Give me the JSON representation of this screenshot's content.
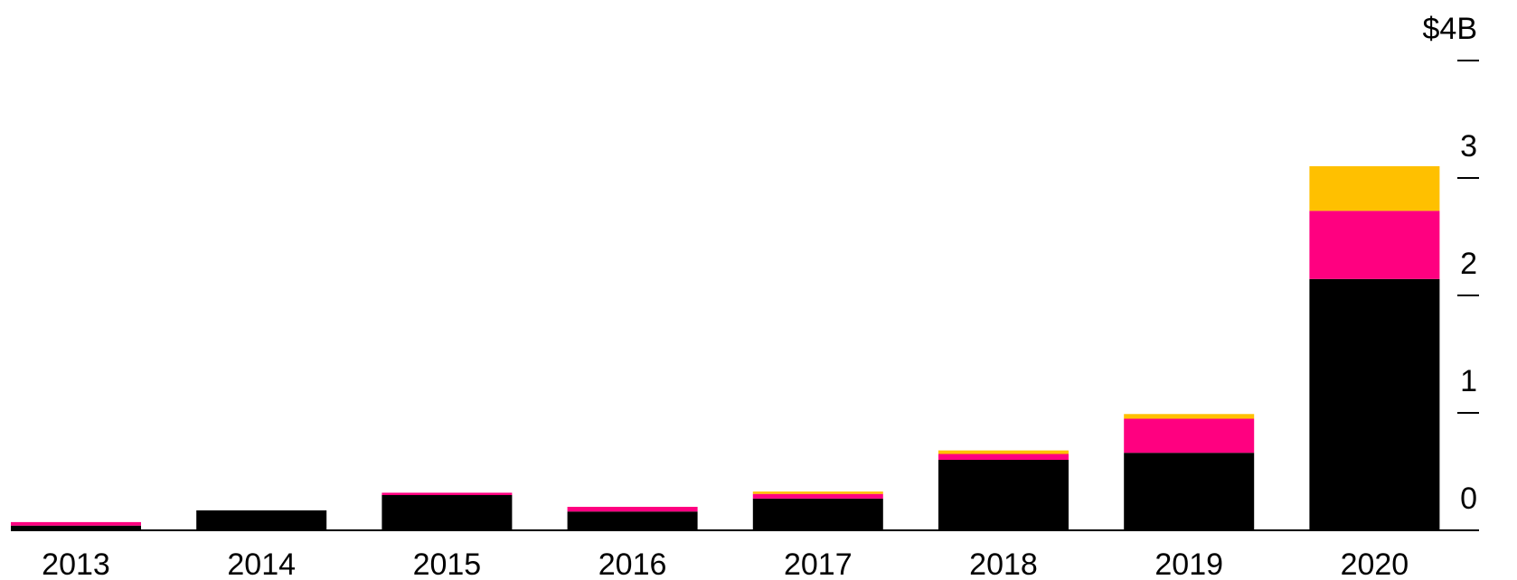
{
  "chart_data": {
    "type": "bar",
    "stacked": true,
    "title": "",
    "xlabel": "",
    "ylabel": "",
    "y_unit_label": "$4B",
    "categories": [
      "2013",
      "2014",
      "2015",
      "2016",
      "2017",
      "2018",
      "2019",
      "2020"
    ],
    "series": [
      {
        "color": "#000000",
        "values": [
          0.04,
          0.17,
          0.3,
          0.16,
          0.27,
          0.6,
          0.66,
          2.14
        ]
      },
      {
        "color": "#ff0080",
        "values": [
          0.03,
          0.0,
          0.02,
          0.04,
          0.04,
          0.05,
          0.29,
          0.58
        ]
      },
      {
        "color": "#ffc000",
        "values": [
          0.0,
          0.0,
          0.0,
          0.0,
          0.02,
          0.03,
          0.04,
          0.38
        ]
      }
    ],
    "ylim": [
      0,
      4
    ],
    "yticks": [
      0,
      1,
      2,
      3,
      4
    ],
    "ytick_labels": [
      "0",
      "1",
      "2",
      "3",
      "$4B"
    ],
    "y_axis_position": "right",
    "grid": false,
    "legend": "none"
  }
}
